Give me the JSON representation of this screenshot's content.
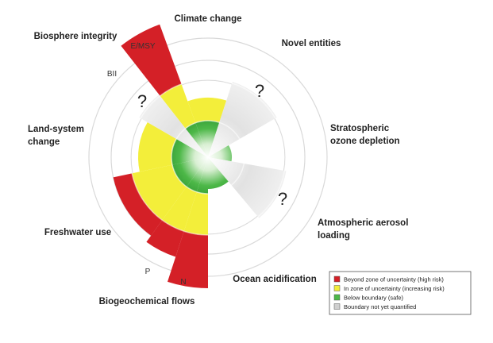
{
  "diagram": {
    "labels": [
      {
        "lines": [
          "Climate change"
        ]
      },
      {
        "lines": [
          "Novel entities"
        ]
      },
      {
        "lines": [
          "Stratospheric",
          "ozone depletion"
        ]
      },
      {
        "lines": [
          "Atmospheric aerosol",
          "loading"
        ]
      },
      {
        "lines": [
          "Ocean acidification"
        ]
      },
      {
        "lines": [
          "Biogeochemical flows"
        ]
      },
      {
        "lines": [
          "Freshwater use"
        ]
      },
      {
        "lines": [
          "Land-system",
          "change"
        ]
      },
      {
        "lines": [
          "Biosphere integrity"
        ]
      }
    ],
    "sub_labels": [
      "E/MSY",
      "BII",
      "P",
      "N"
    ],
    "question_marks": [
      "?",
      "?",
      "?"
    ],
    "legend": [
      {
        "label": "Beyond zone of uncertainty (high risk)",
        "color": "#d42027"
      },
      {
        "label": "In zone of uncertainty (increasing risk)",
        "color": "#f3ee3a"
      },
      {
        "label": "Below boundary (safe)",
        "color": "#4db848"
      },
      {
        "label": "Boundary not yet quantified",
        "color": "#cfcfcf"
      }
    ]
  }
}
